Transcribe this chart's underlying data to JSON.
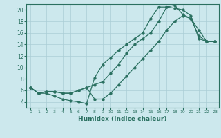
{
  "xlabel": "Humidex (Indice chaleur)",
  "bg_color": "#cce8ed",
  "grid_color": "#aacdd5",
  "line_color": "#2a7060",
  "xlim": [
    -0.5,
    23.5
  ],
  "ylim": [
    3.0,
    21.0
  ],
  "yticks": [
    4,
    6,
    8,
    10,
    12,
    14,
    16,
    18,
    20
  ],
  "xticks": [
    0,
    1,
    2,
    3,
    4,
    5,
    6,
    7,
    8,
    9,
    10,
    11,
    12,
    13,
    14,
    15,
    16,
    17,
    18,
    19,
    20,
    21,
    22,
    23
  ],
  "line1_x": [
    0,
    1,
    2,
    3,
    4,
    5,
    6,
    7,
    8,
    9,
    10,
    11,
    12,
    13,
    14,
    15,
    16,
    17,
    18,
    19,
    20,
    21,
    22,
    23
  ],
  "line1_y": [
    6.5,
    5.5,
    5.5,
    5.0,
    4.5,
    4.2,
    4.0,
    3.7,
    8.2,
    10.5,
    11.7,
    13.0,
    14.0,
    15.0,
    16.0,
    18.5,
    20.5,
    20.5,
    20.3,
    20.0,
    19.0,
    15.0,
    14.5,
    14.5
  ],
  "line2_x": [
    0,
    1,
    2,
    3,
    4,
    5,
    6,
    7,
    8,
    9,
    10,
    11,
    12,
    13,
    14,
    15,
    16,
    17,
    18,
    19,
    20,
    21,
    22,
    23
  ],
  "line2_y": [
    6.5,
    5.5,
    5.8,
    5.8,
    5.5,
    5.5,
    6.0,
    6.5,
    7.0,
    7.5,
    9.0,
    10.5,
    12.5,
    14.0,
    15.0,
    16.0,
    18.0,
    20.5,
    20.8,
    19.2,
    18.5,
    15.5,
    14.5,
    14.5
  ],
  "line3_x": [
    0,
    1,
    2,
    3,
    4,
    5,
    6,
    7,
    8,
    9,
    10,
    11,
    12,
    13,
    14,
    15,
    16,
    17,
    18,
    19,
    20,
    21,
    22,
    23
  ],
  "line3_y": [
    6.5,
    5.5,
    5.8,
    5.8,
    5.5,
    5.5,
    6.0,
    6.5,
    4.5,
    4.5,
    5.5,
    7.0,
    8.5,
    10.0,
    11.5,
    13.0,
    14.5,
    16.5,
    18.0,
    19.0,
    18.5,
    16.5,
    14.5,
    14.5
  ]
}
